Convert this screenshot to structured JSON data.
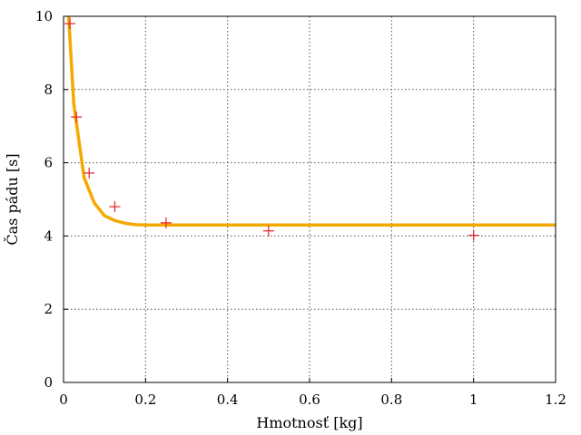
{
  "chart_data": {
    "type": "scatter",
    "xlabel": "Hmotnosť [kg]",
    "ylabel": "Čas pádu [s]",
    "xlim": [
      0,
      1.2
    ],
    "ylim": [
      0,
      10
    ],
    "xticks": [
      "0",
      "0.2",
      "0.4",
      "0.6",
      "0.8",
      "1",
      "1.2"
    ],
    "yticks": [
      "0",
      "2",
      "4",
      "6",
      "8",
      "10"
    ],
    "grid": true,
    "series": [
      {
        "kind": "scatter",
        "marker": "plus",
        "color": "#e8202a",
        "x": [
          0.0156,
          0.0313,
          0.0625,
          0.125,
          0.25,
          0.5,
          1.0
        ],
        "y": [
          9.8,
          7.25,
          5.72,
          4.8,
          4.36,
          4.14,
          4.02
        ]
      },
      {
        "kind": "line",
        "color": "#f5a800",
        "x": [
          0.0125,
          0.025,
          0.05,
          0.075,
          0.1,
          0.125,
          0.15,
          0.175,
          0.2,
          0.25,
          0.3,
          0.5,
          0.75,
          1.0,
          1.2
        ],
        "y": [
          10.0,
          7.6,
          5.6,
          4.9,
          4.55,
          4.42,
          4.35,
          4.31,
          4.3,
          4.3,
          4.3,
          4.3,
          4.3,
          4.3,
          4.3
        ]
      }
    ]
  }
}
